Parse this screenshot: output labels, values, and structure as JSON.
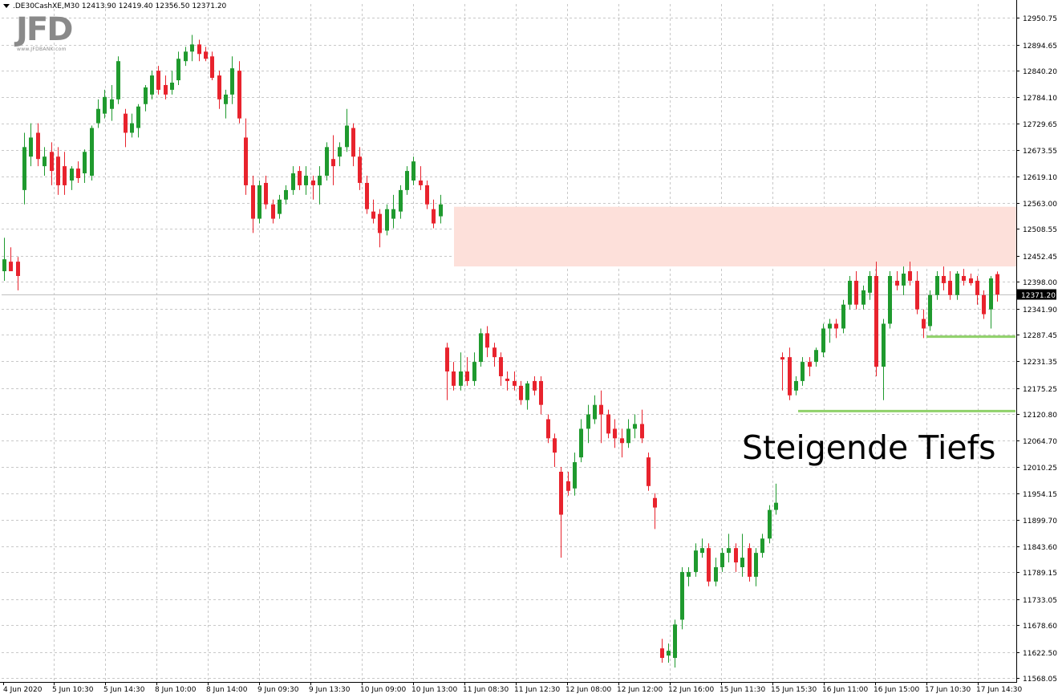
{
  "header": {
    "symbol_line": ".DE30CashXE,M30  12413.90 12419.40 12356.50 12371.20"
  },
  "logo": {
    "text": "JFD",
    "subtext": "www.JFDBANK.com"
  },
  "annotation": {
    "text": "Steigende Tiefs"
  },
  "colors": {
    "bull": "#1f9a2e",
    "bear": "#e8232d",
    "zone": "#fde0da",
    "support": "#8fd16a",
    "grid": "#c8c8c8",
    "axis": "#000000"
  },
  "price_label": "12371.20",
  "chart_data": {
    "type": "candlestick",
    "symbol": ".DE30CashXE",
    "timeframe": "M30",
    "ohlc_last": {
      "open": 12413.9,
      "high": 12419.4,
      "low": 12356.5,
      "close": 12371.2
    },
    "ylim": [
      11568.05,
      12978.0
    ],
    "y_ticks": [
      "12950.75",
      "12894.65",
      "12840.20",
      "12784.10",
      "12729.65",
      "12673.55",
      "12619.10",
      "12563.00",
      "12508.55",
      "12452.45",
      "12398.00",
      "12341.90",
      "12287.45",
      "12231.35",
      "12175.25",
      "12120.80",
      "12064.70",
      "12010.25",
      "11954.15",
      "11899.70",
      "11843.60",
      "11789.15",
      "11733.05",
      "11678.60",
      "11622.50",
      "11568.05"
    ],
    "x_ticks": [
      "4 Jun 2020",
      "5 Jun 10:30",
      "5 Jun 14:30",
      "8 Jun 10:00",
      "8 Jun 14:00",
      "9 Jun 09:30",
      "9 Jun 13:30",
      "10 Jun 09:00",
      "10 Jun 13:00",
      "11 Jun 08:30",
      "11 Jun 12:30",
      "12 Jun 08:00",
      "12 Jun 12:00",
      "12 Jun 16:00",
      "15 Jun 11:30",
      "15 Jun 15:30",
      "16 Jun 11:00",
      "16 Jun 15:00",
      "17 Jun 10:30",
      "17 Jun 14:30"
    ],
    "resistance_zone": {
      "from": 12430,
      "to": 12555
    },
    "support_lines": [
      {
        "price": 12283
      },
      {
        "price": 12127
      }
    ],
    "current_price": 12371.2,
    "candles": [
      {
        "o": 12420,
        "h": 12490,
        "l": 12400,
        "c": 12445
      },
      {
        "o": 12440,
        "h": 12470,
        "l": 12425,
        "c": 12420
      },
      {
        "o": 12440,
        "h": 12450,
        "l": 12380,
        "c": 12410
      },
      {
        "o": 12590,
        "h": 12710,
        "l": 12560,
        "c": 12680
      },
      {
        "o": 12660,
        "h": 12730,
        "l": 12640,
        "c": 12700
      },
      {
        "o": 12710,
        "h": 12730,
        "l": 12640,
        "c": 12655
      },
      {
        "o": 12640,
        "h": 12680,
        "l": 12620,
        "c": 12660
      },
      {
        "o": 12670,
        "h": 12690,
        "l": 12600,
        "c": 12630
      },
      {
        "o": 12660,
        "h": 12680,
        "l": 12580,
        "c": 12600
      },
      {
        "o": 12640,
        "h": 12670,
        "l": 12580,
        "c": 12600
      },
      {
        "o": 12610,
        "h": 12640,
        "l": 12590,
        "c": 12635
      },
      {
        "o": 12635,
        "h": 12650,
        "l": 12605,
        "c": 12615
      },
      {
        "o": 12625,
        "h": 12675,
        "l": 12605,
        "c": 12670
      },
      {
        "o": 12620,
        "h": 12725,
        "l": 12610,
        "c": 12720
      },
      {
        "o": 12730,
        "h": 12780,
        "l": 12720,
        "c": 12760
      },
      {
        "o": 12750,
        "h": 12800,
        "l": 12740,
        "c": 12785
      },
      {
        "o": 12760,
        "h": 12810,
        "l": 12735,
        "c": 12780
      },
      {
        "o": 12780,
        "h": 12870,
        "l": 12770,
        "c": 12860
      },
      {
        "o": 12750,
        "h": 12760,
        "l": 12680,
        "c": 12710
      },
      {
        "o": 12710,
        "h": 12750,
        "l": 12700,
        "c": 12730
      },
      {
        "o": 12720,
        "h": 12770,
        "l": 12700,
        "c": 12765
      },
      {
        "o": 12770,
        "h": 12810,
        "l": 12755,
        "c": 12805
      },
      {
        "o": 12790,
        "h": 12840,
        "l": 12780,
        "c": 12830
      },
      {
        "o": 12840,
        "h": 12850,
        "l": 12790,
        "c": 12800
      },
      {
        "o": 12810,
        "h": 12830,
        "l": 12780,
        "c": 12790
      },
      {
        "o": 12800,
        "h": 12840,
        "l": 12790,
        "c": 12815
      },
      {
        "o": 12820,
        "h": 12880,
        "l": 12810,
        "c": 12865
      },
      {
        "o": 12860,
        "h": 12890,
        "l": 12850,
        "c": 12880
      },
      {
        "o": 12880,
        "h": 12915,
        "l": 12860,
        "c": 12895
      },
      {
        "o": 12895,
        "h": 12905,
        "l": 12860,
        "c": 12875
      },
      {
        "o": 12880,
        "h": 12890,
        "l": 12860,
        "c": 12865
      },
      {
        "o": 12870,
        "h": 12880,
        "l": 12820,
        "c": 12825
      },
      {
        "o": 12830,
        "h": 12840,
        "l": 12760,
        "c": 12780
      },
      {
        "o": 12770,
        "h": 12800,
        "l": 12740,
        "c": 12790
      },
      {
        "o": 12790,
        "h": 12870,
        "l": 12770,
        "c": 12845
      },
      {
        "o": 12840,
        "h": 12860,
        "l": 12730,
        "c": 12740
      },
      {
        "o": 12700,
        "h": 12740,
        "l": 12580,
        "c": 12600
      },
      {
        "o": 12600,
        "h": 12620,
        "l": 12500,
        "c": 12530
      },
      {
        "o": 12530,
        "h": 12610,
        "l": 12520,
        "c": 12600
      },
      {
        "o": 12605,
        "h": 12620,
        "l": 12550,
        "c": 12560
      },
      {
        "o": 12560,
        "h": 12570,
        "l": 12520,
        "c": 12530
      },
      {
        "o": 12540,
        "h": 12580,
        "l": 12530,
        "c": 12570
      },
      {
        "o": 12570,
        "h": 12600,
        "l": 12560,
        "c": 12590
      },
      {
        "o": 12590,
        "h": 12640,
        "l": 12580,
        "c": 12625
      },
      {
        "o": 12630,
        "h": 12640,
        "l": 12590,
        "c": 12600
      },
      {
        "o": 12600,
        "h": 12640,
        "l": 12580,
        "c": 12620
      },
      {
        "o": 12610,
        "h": 12620,
        "l": 12570,
        "c": 12600
      },
      {
        "o": 12600,
        "h": 12640,
        "l": 12560,
        "c": 12620
      },
      {
        "o": 12620,
        "h": 12690,
        "l": 12610,
        "c": 12680
      },
      {
        "o": 12655,
        "h": 12705,
        "l": 12600,
        "c": 12640
      },
      {
        "o": 12660,
        "h": 12690,
        "l": 12640,
        "c": 12680
      },
      {
        "o": 12680,
        "h": 12760,
        "l": 12670,
        "c": 12725
      },
      {
        "o": 12720,
        "h": 12730,
        "l": 12640,
        "c": 12660
      },
      {
        "o": 12660,
        "h": 12680,
        "l": 12590,
        "c": 12605
      },
      {
        "o": 12605,
        "h": 12620,
        "l": 12540,
        "c": 12550
      },
      {
        "o": 12545,
        "h": 12570,
        "l": 12520,
        "c": 12530
      },
      {
        "o": 12540,
        "h": 12550,
        "l": 12470,
        "c": 12500
      },
      {
        "o": 12505,
        "h": 12560,
        "l": 12495,
        "c": 12550
      },
      {
        "o": 12530,
        "h": 12580,
        "l": 12510,
        "c": 12550
      },
      {
        "o": 12545,
        "h": 12600,
        "l": 12530,
        "c": 12590
      },
      {
        "o": 12590,
        "h": 12640,
        "l": 12580,
        "c": 12630
      },
      {
        "o": 12610,
        "h": 12660,
        "l": 12600,
        "c": 12650
      },
      {
        "o": 12610,
        "h": 12640,
        "l": 12590,
        "c": 12600
      },
      {
        "o": 12600,
        "h": 12610,
        "l": 12550,
        "c": 12560
      },
      {
        "o": 12550,
        "h": 12570,
        "l": 12510,
        "c": 12520
      },
      {
        "o": 12535,
        "h": 12580,
        "l": 12520,
        "c": 12560
      },
      {
        "o": 12260,
        "h": 12270,
        "l": 12150,
        "c": 12210
      },
      {
        "o": 12210,
        "h": 12230,
        "l": 12170,
        "c": 12180
      },
      {
        "o": 12180,
        "h": 12250,
        "l": 12170,
        "c": 12210
      },
      {
        "o": 12210,
        "h": 12240,
        "l": 12180,
        "c": 12190
      },
      {
        "o": 12190,
        "h": 12250,
        "l": 12180,
        "c": 12230
      },
      {
        "o": 12230,
        "h": 12300,
        "l": 12220,
        "c": 12290
      },
      {
        "o": 12290,
        "h": 12305,
        "l": 12240,
        "c": 12260
      },
      {
        "o": 12260,
        "h": 12270,
        "l": 12220,
        "c": 12240
      },
      {
        "o": 12240,
        "h": 12250,
        "l": 12180,
        "c": 12200
      },
      {
        "o": 12195,
        "h": 12210,
        "l": 12170,
        "c": 12190
      },
      {
        "o": 12190,
        "h": 12210,
        "l": 12170,
        "c": 12180
      },
      {
        "o": 12180,
        "h": 12190,
        "l": 12140,
        "c": 12150
      },
      {
        "o": 12150,
        "h": 12190,
        "l": 12130,
        "c": 12185
      },
      {
        "o": 12190,
        "h": 12200,
        "l": 12160,
        "c": 12170
      },
      {
        "o": 12190,
        "h": 12200,
        "l": 12120,
        "c": 12140
      },
      {
        "o": 12110,
        "h": 12120,
        "l": 12060,
        "c": 12070
      },
      {
        "o": 12070,
        "h": 12080,
        "l": 12010,
        "c": 12040
      },
      {
        "o": 12000,
        "h": 12010,
        "l": 11820,
        "c": 11910
      },
      {
        "o": 11980,
        "h": 12000,
        "l": 11950,
        "c": 11960
      },
      {
        "o": 11965,
        "h": 12040,
        "l": 11950,
        "c": 12020
      },
      {
        "o": 12030,
        "h": 12110,
        "l": 12020,
        "c": 12090
      },
      {
        "o": 12090,
        "h": 12140,
        "l": 12060,
        "c": 12120
      },
      {
        "o": 12110,
        "h": 12160,
        "l": 12100,
        "c": 12140
      },
      {
        "o": 12140,
        "h": 12170,
        "l": 12060,
        "c": 12120
      },
      {
        "o": 12120,
        "h": 12130,
        "l": 12070,
        "c": 12080
      },
      {
        "o": 12090,
        "h": 12110,
        "l": 12050,
        "c": 12070
      },
      {
        "o": 12070,
        "h": 12090,
        "l": 12030,
        "c": 12060
      },
      {
        "o": 12060,
        "h": 12110,
        "l": 12050,
        "c": 12090
      },
      {
        "o": 12090,
        "h": 12120,
        "l": 12070,
        "c": 12100
      },
      {
        "o": 12100,
        "h": 12130,
        "l": 12060,
        "c": 12070
      },
      {
        "o": 12030,
        "h": 12040,
        "l": 11960,
        "c": 11970
      },
      {
        "o": 11945,
        "h": 11955,
        "l": 11880,
        "c": 11925
      },
      {
        "o": 11630,
        "h": 11650,
        "l": 11600,
        "c": 11610
      },
      {
        "o": 11615,
        "h": 11640,
        "l": 11600,
        "c": 11625
      },
      {
        "o": 11610,
        "h": 11690,
        "l": 11590,
        "c": 11680
      },
      {
        "o": 11690,
        "h": 11800,
        "l": 11670,
        "c": 11790
      },
      {
        "o": 11780,
        "h": 11800,
        "l": 11760,
        "c": 11790
      },
      {
        "o": 11790,
        "h": 11850,
        "l": 11780,
        "c": 11835
      },
      {
        "o": 11830,
        "h": 11860,
        "l": 11820,
        "c": 11840
      },
      {
        "o": 11840,
        "h": 11850,
        "l": 11760,
        "c": 11770
      },
      {
        "o": 11770,
        "h": 11820,
        "l": 11760,
        "c": 11800
      },
      {
        "o": 11800,
        "h": 11840,
        "l": 11790,
        "c": 11830
      },
      {
        "o": 11830,
        "h": 11870,
        "l": 11810,
        "c": 11840
      },
      {
        "o": 11840,
        "h": 11850,
        "l": 11790,
        "c": 11810
      },
      {
        "o": 11800,
        "h": 11870,
        "l": 11780,
        "c": 11820
      },
      {
        "o": 11840,
        "h": 11850,
        "l": 11770,
        "c": 11780
      },
      {
        "o": 11780,
        "h": 11840,
        "l": 11760,
        "c": 11830
      },
      {
        "o": 11830,
        "h": 11870,
        "l": 11820,
        "c": 11860
      },
      {
        "o": 11860,
        "h": 11930,
        "l": 11850,
        "c": 11920
      },
      {
        "o": 11920,
        "h": 11975,
        "l": 11910,
        "c": 11935
      },
      {
        "o": 12240,
        "h": 12250,
        "l": 12170,
        "c": 12235
      },
      {
        "o": 12240,
        "h": 12260,
        "l": 12150,
        "c": 12160
      },
      {
        "o": 12170,
        "h": 12200,
        "l": 12160,
        "c": 12190
      },
      {
        "o": 12190,
        "h": 12240,
        "l": 12180,
        "c": 12230
      },
      {
        "o": 12230,
        "h": 12240,
        "l": 12200,
        "c": 12220
      },
      {
        "o": 12230,
        "h": 12260,
        "l": 12220,
        "c": 12255
      },
      {
        "o": 12250,
        "h": 12310,
        "l": 12240,
        "c": 12300
      },
      {
        "o": 12300,
        "h": 12320,
        "l": 12270,
        "c": 12310
      },
      {
        "o": 12310,
        "h": 12320,
        "l": 12280,
        "c": 12300
      },
      {
        "o": 12300,
        "h": 12360,
        "l": 12290,
        "c": 12350
      },
      {
        "o": 12350,
        "h": 12410,
        "l": 12340,
        "c": 12400
      },
      {
        "o": 12400,
        "h": 12420,
        "l": 12340,
        "c": 12350
      },
      {
        "o": 12350,
        "h": 12390,
        "l": 12340,
        "c": 12380
      },
      {
        "o": 12375,
        "h": 12420,
        "l": 12360,
        "c": 12410
      },
      {
        "o": 12410,
        "h": 12440,
        "l": 12200,
        "c": 12220
      },
      {
        "o": 12220,
        "h": 12320,
        "l": 12150,
        "c": 12310
      },
      {
        "o": 12310,
        "h": 12420,
        "l": 12300,
        "c": 12410
      },
      {
        "o": 12400,
        "h": 12420,
        "l": 12380,
        "c": 12390
      },
      {
        "o": 12390,
        "h": 12430,
        "l": 12370,
        "c": 12415
      },
      {
        "o": 12420,
        "h": 12440,
        "l": 12390,
        "c": 12400
      },
      {
        "o": 12400,
        "h": 12420,
        "l": 12330,
        "c": 12340
      },
      {
        "o": 12320,
        "h": 12340,
        "l": 12280,
        "c": 12300
      },
      {
        "o": 12305,
        "h": 12380,
        "l": 12295,
        "c": 12370
      },
      {
        "o": 12370,
        "h": 12420,
        "l": 12360,
        "c": 12410
      },
      {
        "o": 12410,
        "h": 12430,
        "l": 12380,
        "c": 12395
      },
      {
        "o": 12400,
        "h": 12420,
        "l": 12360,
        "c": 12370
      },
      {
        "o": 12370,
        "h": 12420,
        "l": 12360,
        "c": 12415
      },
      {
        "o": 12410,
        "h": 12425,
        "l": 12390,
        "c": 12400
      },
      {
        "o": 12405,
        "h": 12415,
        "l": 12390,
        "c": 12395
      },
      {
        "o": 12400,
        "h": 12410,
        "l": 12350,
        "c": 12370
      },
      {
        "o": 12370,
        "h": 12380,
        "l": 12320,
        "c": 12330
      },
      {
        "o": 12340,
        "h": 12410,
        "l": 12300,
        "c": 12405
      },
      {
        "o": 12413.9,
        "h": 12419.4,
        "l": 12356.5,
        "c": 12371.2
      }
    ]
  }
}
